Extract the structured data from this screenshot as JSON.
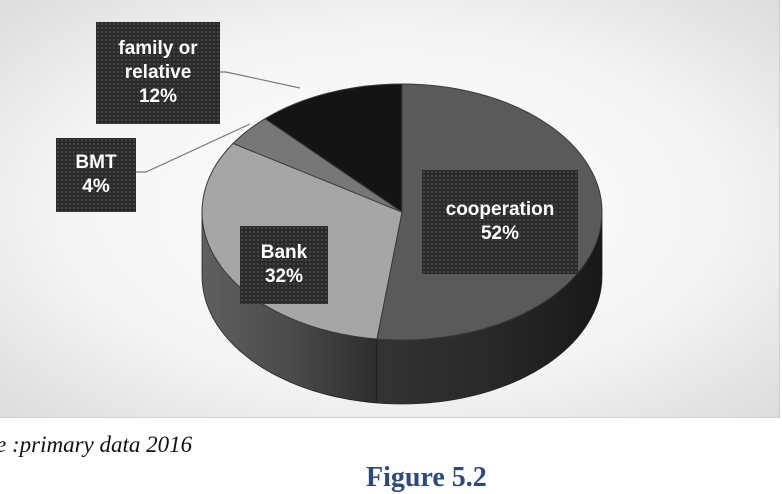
{
  "chart_data": {
    "type": "pie",
    "style": "3d",
    "categories": [
      "cooperation",
      "Bank",
      "BMT",
      "family or relative"
    ],
    "values": [
      52,
      32,
      4,
      12
    ],
    "unit": "%",
    "colors": [
      "#5a5a5a",
      "#a6a6a6",
      "#777777",
      "#141414"
    ],
    "labels": [
      {
        "text": "cooperation\n52%"
      },
      {
        "text": "Bank\n32%"
      },
      {
        "text": "BMT\n4%"
      },
      {
        "text": "family or\nrelative\n12%"
      }
    ],
    "title": "",
    "legend": "none"
  },
  "source_note": "e :primary data 2016",
  "figure_caption": "Figure 5.2"
}
